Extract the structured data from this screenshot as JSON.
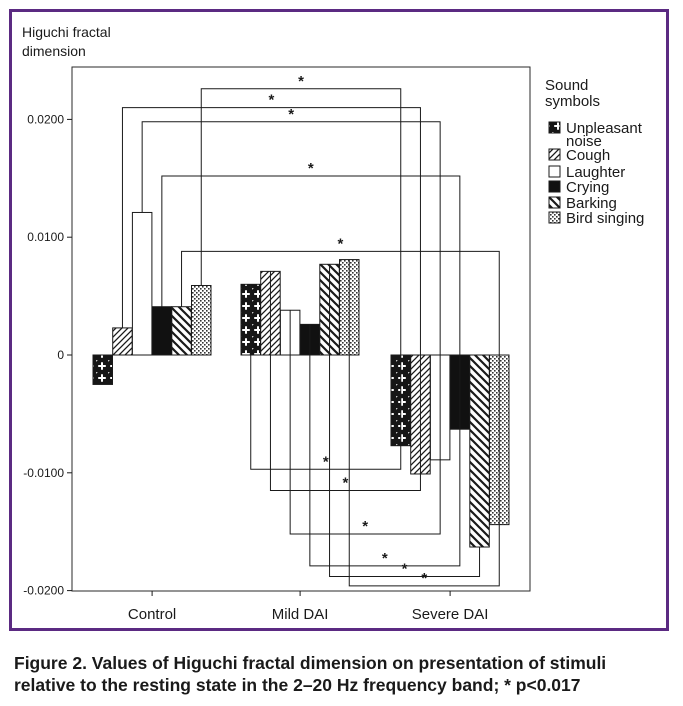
{
  "caption": {
    "line1": "Figure 2. Values of Higuchi fractal dimension on presentation of stimuli",
    "line2": "relative to the resting state in the 2–20 Hz frequency band; * p<0.017"
  },
  "colors": {
    "frame": "#5b2a82",
    "ink": "#1a1a1a",
    "bar_fill_black": "#111111"
  },
  "chart_data": {
    "type": "bar",
    "ylabel_lines": [
      "Higuchi fractal",
      "dimension"
    ],
    "xlabel": "",
    "ylim": [
      -0.02,
      0.0237
    ],
    "yticks": [
      0.02,
      0.01,
      0,
      -0.01,
      -0.02
    ],
    "ytick_labels": [
      "0.0200",
      "0.0100",
      "0",
      "-0.0100",
      "-0.0200"
    ],
    "categories": [
      "Control",
      "Mild DAI",
      "Severe DAI"
    ],
    "grid": false,
    "legend": {
      "title_lines": [
        "Sound",
        "symbols"
      ],
      "placement": "right",
      "items": [
        {
          "label_lines": [
            "Unpleasant",
            "noise"
          ],
          "pattern": "cross"
        },
        {
          "label_lines": [
            "Cough"
          ],
          "pattern": "diag"
        },
        {
          "label_lines": [
            "Laughter"
          ],
          "pattern": "white"
        },
        {
          "label_lines": [
            "Crying"
          ],
          "pattern": "black"
        },
        {
          "label_lines": [
            "Barking"
          ],
          "pattern": "backdiag"
        },
        {
          "label_lines": [
            "Bird singing"
          ],
          "pattern": "dots"
        }
      ]
    },
    "series": [
      {
        "name": "Unpleasant noise",
        "values": [
          -0.0025,
          0.006,
          -0.0077
        ]
      },
      {
        "name": "Cough",
        "values": [
          0.0023,
          0.0071,
          -0.0101
        ]
      },
      {
        "name": "Laughter",
        "values": [
          0.0121,
          0.0038,
          -0.0089
        ]
      },
      {
        "name": "Crying",
        "values": [
          0.0041,
          0.0026,
          -0.0063
        ]
      },
      {
        "name": "Barking",
        "values": [
          0.0041,
          0.0077,
          -0.0163
        ]
      },
      {
        "name": "Bird singing",
        "values": [
          0.0059,
          0.0081,
          -0.0144
        ]
      }
    ],
    "significance_brackets": [
      {
        "from": [
          0,
          5
        ],
        "to": [
          2,
          0
        ],
        "level": 0.0226,
        "label": "*"
      },
      {
        "from": [
          0,
          1
        ],
        "to": [
          2,
          1
        ],
        "level": 0.021,
        "label": "*"
      },
      {
        "from": [
          0,
          2
        ],
        "to": [
          2,
          2
        ],
        "level": 0.0198,
        "label": "*"
      },
      {
        "from": [
          0,
          3
        ],
        "to": [
          2,
          3
        ],
        "level": 0.0152,
        "label": "*"
      },
      {
        "from": [
          0,
          4
        ],
        "to": [
          2,
          5
        ],
        "level": 0.0088,
        "label": "*"
      },
      {
        "from": [
          1,
          0
        ],
        "to": [
          2,
          0
        ],
        "level": -0.0097,
        "label": "*"
      },
      {
        "from": [
          1,
          1
        ],
        "to": [
          2,
          1
        ],
        "level": -0.0115,
        "label": "*"
      },
      {
        "from": [
          1,
          2
        ],
        "to": [
          2,
          2
        ],
        "level": -0.0152,
        "label": "*"
      },
      {
        "from": [
          1,
          3
        ],
        "to": [
          2,
          3
        ],
        "level": -0.0179,
        "label": "*"
      },
      {
        "from": [
          1,
          4
        ],
        "to": [
          2,
          4
        ],
        "level": -0.0188,
        "label": "*"
      },
      {
        "from": [
          1,
          5
        ],
        "to": [
          2,
          5
        ],
        "level": -0.0196,
        "label": "*"
      }
    ]
  }
}
